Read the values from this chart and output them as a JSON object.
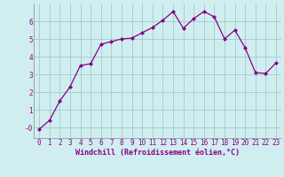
{
  "x": [
    0,
    1,
    2,
    3,
    4,
    5,
    6,
    7,
    8,
    9,
    10,
    11,
    12,
    13,
    14,
    15,
    16,
    17,
    18,
    19,
    20,
    21,
    22,
    23
  ],
  "y": [
    -0.1,
    0.4,
    1.5,
    2.3,
    3.5,
    3.6,
    4.7,
    4.85,
    5.0,
    5.05,
    5.35,
    5.65,
    6.05,
    6.55,
    5.6,
    6.15,
    6.55,
    6.25,
    5.0,
    5.5,
    4.5,
    3.1,
    3.05,
    3.65
  ],
  "line_color": "#880088",
  "marker": "D",
  "marker_size": 2.0,
  "bg_color": "#d0eef0",
  "grid_color": "#a0ccc8",
  "xlabel": "Windchill (Refroidissement éolien,°C)",
  "xlabel_color": "#880088",
  "tick_color": "#880088",
  "ylim": [
    -0.6,
    7.0
  ],
  "xlim": [
    -0.5,
    23.5
  ],
  "yticks": [
    0,
    1,
    2,
    3,
    4,
    5,
    6
  ],
  "ytick_labels": [
    "-0",
    "1",
    "2",
    "3",
    "4",
    "5",
    "6"
  ],
  "xticks": [
    0,
    1,
    2,
    3,
    4,
    5,
    6,
    7,
    8,
    9,
    10,
    11,
    12,
    13,
    14,
    15,
    16,
    17,
    18,
    19,
    20,
    21,
    22,
    23
  ],
  "tick_fontsize": 5.5,
  "xlabel_fontsize": 6.0,
  "line_width": 0.9
}
